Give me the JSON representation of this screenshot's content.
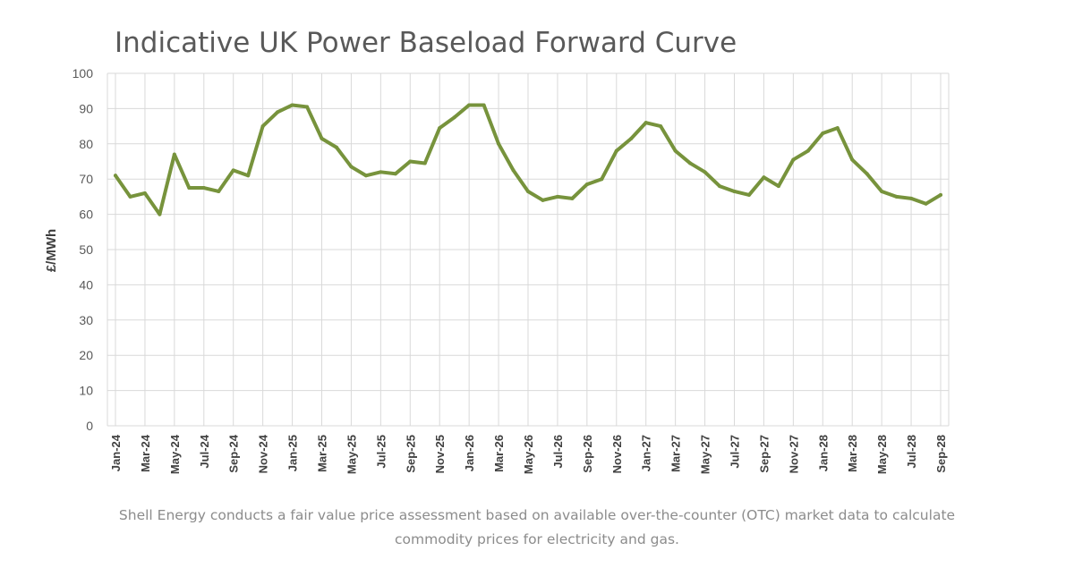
{
  "chart_data": {
    "type": "line",
    "title": "Indicative UK Power Baseload Forward Curve",
    "xlabel": "",
    "ylabel": "£/MWh",
    "ylim": [
      0,
      100
    ],
    "yticks": [
      0,
      10,
      20,
      30,
      40,
      50,
      60,
      70,
      80,
      90,
      100
    ],
    "grid": true,
    "legend": "none",
    "line_color": "#77933c",
    "x_tick_labels": [
      "Jan-24",
      "Mar-24",
      "May-24",
      "Jul-24",
      "Sep-24",
      "Nov-24",
      "Jan-25",
      "Mar-25",
      "May-25",
      "Jul-25",
      "Sep-25",
      "Nov-25",
      "Jan-26",
      "Mar-26",
      "May-26",
      "Jul-26",
      "Sep-26",
      "Nov-26",
      "Jan-27",
      "Mar-27",
      "May-27",
      "Jul-27",
      "Sep-27",
      "Nov-27",
      "Jan-28",
      "Mar-28",
      "May-28",
      "Jul-28",
      "Sep-28"
    ],
    "x": [
      "Jan-24",
      "Feb-24",
      "Mar-24",
      "Apr-24",
      "May-24",
      "Jun-24",
      "Jul-24",
      "Aug-24",
      "Sep-24",
      "Oct-24",
      "Nov-24",
      "Dec-24",
      "Jan-25",
      "Feb-25",
      "Mar-25",
      "Apr-25",
      "May-25",
      "Jun-25",
      "Jul-25",
      "Aug-25",
      "Sep-25",
      "Oct-25",
      "Nov-25",
      "Dec-25",
      "Jan-26",
      "Feb-26",
      "Mar-26",
      "Apr-26",
      "May-26",
      "Jun-26",
      "Jul-26",
      "Aug-26",
      "Sep-26",
      "Oct-26",
      "Nov-26",
      "Dec-26",
      "Jan-27",
      "Feb-27",
      "Mar-27",
      "Apr-27",
      "May-27",
      "Jun-27",
      "Jul-27",
      "Aug-27",
      "Sep-27",
      "Oct-27",
      "Nov-27",
      "Dec-27",
      "Jan-28",
      "Feb-28",
      "Mar-28",
      "Apr-28",
      "May-28",
      "Jun-28",
      "Jul-28",
      "Aug-28",
      "Sep-28"
    ],
    "series": [
      {
        "values": [
          71,
          65,
          66,
          60,
          77,
          67.5,
          67.5,
          66.5,
          72.5,
          71,
          85,
          89,
          91,
          90.5,
          81.5,
          79,
          73.5,
          71,
          72,
          71.5,
          75,
          74.5,
          84.5,
          87.5,
          91,
          91,
          80,
          72.5,
          66.5,
          64,
          65,
          64.5,
          68.5,
          70,
          78,
          81.5,
          86,
          85,
          78,
          74.5,
          72,
          68,
          66.5,
          65.5,
          70.5,
          68,
          75.5,
          78,
          83,
          84.5,
          75.5,
          71.5,
          66.5,
          65,
          64.5,
          63,
          65.5
        ]
      }
    ]
  },
  "footnote": {
    "line1": "Shell Energy conducts a fair value price assessment based on available over-the-counter (OTC) market data to calculate",
    "line2": "commodity prices for electricity and gas."
  }
}
